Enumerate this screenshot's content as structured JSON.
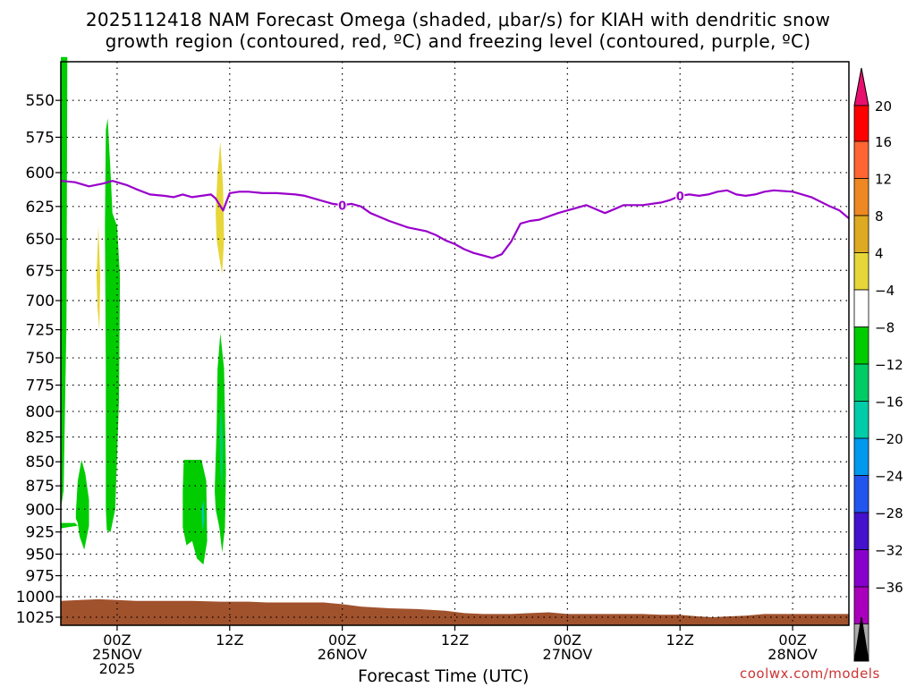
{
  "title": {
    "line1": "2025112418 NAM Forecast Omega (shaded, μbar/s) for KIAH with dendritic snow",
    "line2": "growth region (contoured, red, ºC) and freezing level (contoured, purple, ºC)"
  },
  "credit": "coolwx.com/models",
  "chart_data": {
    "type": "heatmap",
    "title": "2025112418 NAM Forecast Omega (shaded, μbar/s) for KIAH with dendritic snow growth region (contoured, red, ºC) and freezing level (contoured, purple, ºC)",
    "xlabel": "Forecast Time (UTC)",
    "ylabel": "",
    "x_ticks": [
      {
        "hours": 6,
        "line1": "00Z",
        "line2": "25NOV",
        "line3": "2025"
      },
      {
        "hours": 18,
        "line1": "12Z",
        "line2": "",
        "line3": ""
      },
      {
        "hours": 30,
        "line1": "00Z",
        "line2": "26NOV",
        "line3": ""
      },
      {
        "hours": 42,
        "line1": "12Z",
        "line2": "",
        "line3": ""
      },
      {
        "hours": 54,
        "line1": "00Z",
        "line2": "27NOV",
        "line3": ""
      },
      {
        "hours": 66,
        "line1": "12Z",
        "line2": "",
        "line3": ""
      },
      {
        "hours": 78,
        "line1": "00Z",
        "line2": "28NOV",
        "line3": ""
      }
    ],
    "xlim": [
      0,
      84
    ],
    "y_ticks": [
      550,
      575,
      600,
      625,
      650,
      675,
      700,
      725,
      750,
      775,
      800,
      825,
      850,
      875,
      900,
      925,
      950,
      975,
      1000,
      1025
    ],
    "ylim": [
      1035,
      525
    ],
    "y_scale": "log-pressure",
    "grid": true,
    "colorbar": {
      "ticks": [
        "20",
        "16",
        "12",
        "8",
        "4",
        "−4",
        "−8",
        "−12",
        "−16",
        "−20",
        "−24",
        "−28",
        "−32",
        "−36"
      ],
      "segments": [
        "#ff0000",
        "#ff6633",
        "#ee8822",
        "#ddaa22",
        "#e6d63a",
        "#ffffff",
        "#00cc00",
        "#00cc66",
        "#00ccaa",
        "#0099ee",
        "#2255ee",
        "#4411cc",
        "#8800cc",
        "#aa00bb",
        "#aaaaaa"
      ],
      "top_arrow": "#e8106e",
      "bottom_arrow": "#000000"
    },
    "freezing_level": {
      "color": "#9900cc",
      "label": "0",
      "points": [
        [
          0,
          606
        ],
        [
          1.5,
          607
        ],
        [
          3,
          610
        ],
        [
          4.5,
          608
        ],
        [
          5.5,
          606
        ],
        [
          7,
          609
        ],
        [
          8,
          612
        ],
        [
          9.5,
          616
        ],
        [
          11,
          617
        ],
        [
          12,
          618
        ],
        [
          13,
          616
        ],
        [
          14,
          618
        ],
        [
          15,
          617
        ],
        [
          16,
          616
        ],
        [
          16.5,
          619
        ],
        [
          17.3,
          628
        ],
        [
          18,
          615
        ],
        [
          19,
          614
        ],
        [
          20,
          614
        ],
        [
          21.5,
          615
        ],
        [
          23,
          615
        ],
        [
          25,
          616
        ],
        [
          26,
          617
        ],
        [
          27.5,
          620
        ],
        [
          29,
          623
        ],
        [
          30,
          624
        ],
        [
          31,
          623
        ],
        [
          32,
          625
        ],
        [
          33,
          630
        ],
        [
          35,
          636
        ],
        [
          37,
          641
        ],
        [
          39,
          644
        ],
        [
          40,
          647
        ],
        [
          41,
          651
        ],
        [
          42,
          654
        ],
        [
          43,
          658
        ],
        [
          44,
          661
        ],
        [
          45,
          663
        ],
        [
          46,
          665
        ],
        [
          47,
          662
        ],
        [
          48,
          652
        ],
        [
          49,
          638
        ],
        [
          50,
          636
        ],
        [
          51,
          635
        ],
        [
          53,
          630
        ],
        [
          55,
          626
        ],
        [
          56,
          624
        ],
        [
          57,
          627
        ],
        [
          58,
          630
        ],
        [
          59,
          627
        ],
        [
          60,
          624
        ],
        [
          62,
          624
        ],
        [
          64,
          622
        ],
        [
          65,
          620
        ],
        [
          66,
          617
        ],
        [
          67,
          616
        ],
        [
          68,
          617
        ],
        [
          69,
          616
        ],
        [
          70,
          614
        ],
        [
          71,
          613
        ],
        [
          72,
          616
        ],
        [
          73,
          617
        ],
        [
          74,
          616
        ],
        [
          75,
          614
        ],
        [
          76,
          613
        ],
        [
          78,
          614
        ],
        [
          80,
          618
        ],
        [
          82,
          625
        ],
        [
          83,
          628
        ],
        [
          84,
          634
        ]
      ],
      "label_positions": [
        30,
        66
      ]
    },
    "omega_regions": [
      {
        "value_range": [
          -8,
          -4
        ],
        "color": "#00cc00",
        "polygon": [
          [
            0,
            522
          ],
          [
            0.3,
            522
          ],
          [
            0.7,
            522
          ],
          [
            0.6,
            720
          ],
          [
            0.3,
            880
          ],
          [
            0,
            900
          ]
        ]
      },
      {
        "value_range": [
          -8,
          -4
        ],
        "color": "#00cc00",
        "polygon": [
          [
            0,
            915
          ],
          [
            1.5,
            915
          ],
          [
            1.8,
            918
          ],
          [
            0.5,
            920
          ],
          [
            0,
            921
          ]
        ]
      },
      {
        "value_range": [
          -8,
          -4
        ],
        "color": "#00cc00",
        "polygon": [
          [
            1.6,
            904
          ],
          [
            1.8,
            870
          ],
          [
            2.2,
            848
          ],
          [
            2.6,
            862
          ],
          [
            3,
            890
          ],
          [
            3,
            918
          ],
          [
            2.5,
            945
          ],
          [
            2.0,
            930
          ],
          [
            1.8,
            915
          ],
          [
            1.6,
            910
          ]
        ]
      },
      {
        "value_range": [
          -8,
          -4
        ],
        "color": "#00cc00",
        "polygon": [
          [
            4.8,
            900
          ],
          [
            4.8,
            760
          ],
          [
            4.7,
            640
          ],
          [
            4.8,
            570
          ],
          [
            5.0,
            562
          ],
          [
            5.3,
            600
          ],
          [
            5.5,
            630
          ],
          [
            6.0,
            640
          ],
          [
            6.3,
            680
          ],
          [
            6.2,
            790
          ],
          [
            5.8,
            900
          ],
          [
            5.3,
            925
          ],
          [
            4.9,
            923
          ]
        ]
      },
      {
        "value_range": [
          4,
          8
        ],
        "color": "#e6d63a",
        "polygon": [
          [
            3.8,
            680
          ],
          [
            4.0,
            640
          ],
          [
            4.2,
            680
          ],
          [
            4.1,
            725
          ],
          [
            3.9,
            705
          ]
        ]
      },
      {
        "value_range": [
          4,
          8
        ],
        "color": "#e6d63a",
        "polygon": [
          [
            16.5,
            630
          ],
          [
            16.7,
            600
          ],
          [
            17.0,
            578
          ],
          [
            17.3,
            610
          ],
          [
            17.4,
            650
          ],
          [
            17.2,
            678
          ],
          [
            16.9,
            665
          ],
          [
            16.6,
            650
          ]
        ]
      },
      {
        "value_range": [
          -8,
          -4
        ],
        "color": "#00cc00",
        "polygon": [
          [
            13.0,
            880
          ],
          [
            13.1,
            848
          ],
          [
            15.0,
            848
          ],
          [
            15.5,
            870
          ],
          [
            15.6,
            935
          ],
          [
            15.2,
            962
          ],
          [
            14.5,
            955
          ],
          [
            14.0,
            935
          ],
          [
            13.4,
            940
          ],
          [
            13.0,
            920
          ]
        ]
      },
      {
        "value_range": [
          -8,
          -4
        ],
        "color": "#00cc00",
        "polygon": [
          [
            16.4,
            880
          ],
          [
            16.6,
            820
          ],
          [
            16.7,
            760
          ],
          [
            17.0,
            728
          ],
          [
            17.4,
            760
          ],
          [
            17.6,
            860
          ],
          [
            17.5,
            920
          ],
          [
            17.2,
            948
          ],
          [
            16.9,
            920
          ],
          [
            16.5,
            900
          ]
        ]
      },
      {
        "value_range": [
          -12,
          -8
        ],
        "color": "#00cc66",
        "polygon": [
          [
            16.9,
            820
          ],
          [
            17.1,
            790
          ],
          [
            17.3,
            830
          ],
          [
            17.2,
            880
          ],
          [
            17.0,
            860
          ]
        ]
      },
      {
        "value_range": [
          -16,
          -12
        ],
        "color": "#00ccaa",
        "polygon": [
          [
            15.0,
            900
          ],
          [
            15.2,
            890
          ],
          [
            15.3,
            910
          ],
          [
            15.1,
            925
          ]
        ]
      }
    ],
    "surface_pressure": {
      "color": "#a0522d",
      "points": [
        [
          0,
          1005
        ],
        [
          2,
          1004
        ],
        [
          4,
          1003
        ],
        [
          6,
          1004
        ],
        [
          8,
          1005
        ],
        [
          10,
          1005
        ],
        [
          12,
          1005
        ],
        [
          14,
          1005
        ],
        [
          17,
          1006
        ],
        [
          20,
          1006
        ],
        [
          22,
          1007
        ],
        [
          25,
          1007
        ],
        [
          28,
          1007
        ],
        [
          30,
          1009
        ],
        [
          32,
          1012
        ],
        [
          35,
          1014
        ],
        [
          38,
          1015
        ],
        [
          41,
          1017
        ],
        [
          43,
          1020
        ],
        [
          45,
          1021
        ],
        [
          48,
          1021
        ],
        [
          50,
          1020
        ],
        [
          52,
          1019
        ],
        [
          54,
          1021
        ],
        [
          56,
          1021
        ],
        [
          58,
          1021
        ],
        [
          60,
          1021
        ],
        [
          62,
          1021
        ],
        [
          64,
          1022
        ],
        [
          66,
          1022
        ],
        [
          68,
          1024
        ],
        [
          69.5,
          1025
        ],
        [
          71,
          1024
        ],
        [
          73,
          1023
        ],
        [
          75,
          1021
        ],
        [
          78,
          1021
        ],
        [
          80,
          1021
        ],
        [
          82,
          1021
        ],
        [
          84,
          1021
        ]
      ]
    }
  }
}
